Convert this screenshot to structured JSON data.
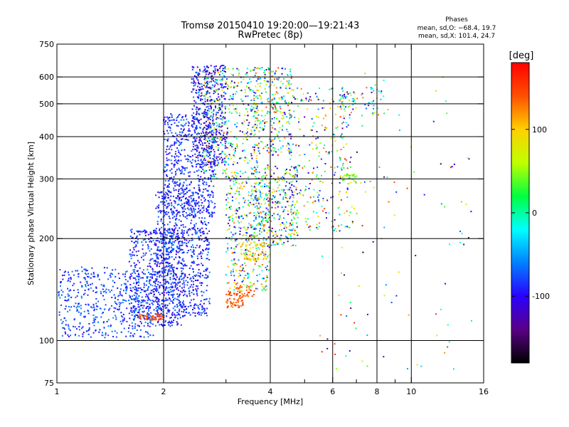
{
  "chart_data": {
    "type": "scatter",
    "title": "Tromsø 20150410 19:20:00—19:21:43",
    "subtitle": "RwPretec (8p)",
    "stats": {
      "heading": "Phases",
      "line_o": "mean, sd,O: −68.4, 19.7",
      "line_x": "mean, sd,X: 101.4, 24.7"
    },
    "xlabel": "Frequency [MHz]",
    "ylabel": "Stationary phase Virtual Height [km]",
    "x_scale": "log",
    "y_scale": "log",
    "xlim": [
      1,
      16
    ],
    "ylim": [
      75,
      750
    ],
    "grid": true,
    "x_ticks": [
      1,
      2,
      4,
      6,
      8,
      10,
      16
    ],
    "x_ticks_with_gridlines": [
      2,
      4,
      6,
      8,
      10
    ],
    "x_ticks_label_only": [
      1,
      16
    ],
    "x_minor_ticks": [
      3,
      5,
      7,
      9
    ],
    "y_ticks": [
      75,
      100,
      200,
      300,
      400,
      500,
      600,
      750
    ],
    "y_ticks_with_gridlines": [
      100,
      200,
      300,
      400,
      500,
      600
    ],
    "colorbar": {
      "label": "[deg]",
      "min": -180,
      "max": 180,
      "ticks": [
        100,
        0,
        -100
      ],
      "colormap": "rainbow",
      "stops": [
        "#000000",
        "#5a0085",
        "#2a00ff",
        "#0080ff",
        "#00ffff",
        "#00ff40",
        "#c0ff00",
        "#ffd000",
        "#ff5000",
        "#ff0000"
      ]
    },
    "clusters": [
      {
        "f": [
          1.0,
          1.9
        ],
        "h": [
          102,
          165
        ],
        "phase": [
          -100,
          -55
        ],
        "n": 520
      },
      {
        "f": [
          1.6,
          2.3
        ],
        "h": [
          110,
          215
        ],
        "phase": [
          -115,
          -60
        ],
        "n": 560
      },
      {
        "f": [
          1.9,
          2.7
        ],
        "h": [
          118,
          280
        ],
        "phase": [
          -115,
          -60
        ],
        "n": 700
      },
      {
        "f": [
          2.0,
          2.8
        ],
        "h": [
          230,
          470
        ],
        "phase": [
          -110,
          -60
        ],
        "n": 560
      },
      {
        "f": [
          2.4,
          3.0
        ],
        "h": [
          330,
          650
        ],
        "phase": [
          -135,
          -60
        ],
        "n": 420
      },
      {
        "f": [
          2.6,
          3.7
        ],
        "h": [
          300,
          640
        ],
        "phase": [
          -160,
          120
        ],
        "n": 420
      },
      {
        "f": [
          3.0,
          4.0
        ],
        "h": [
          140,
          300
        ],
        "phase": [
          -140,
          140
        ],
        "n": 360
      },
      {
        "f": [
          3.6,
          4.8
        ],
        "h": [
          190,
          330
        ],
        "phase": [
          -140,
          140
        ],
        "n": 320
      },
      {
        "f": [
          3.6,
          4.6
        ],
        "h": [
          350,
          640
        ],
        "phase": [
          -120,
          160
        ],
        "n": 280
      },
      {
        "f": [
          4.5,
          6.8
        ],
        "h": [
          210,
          560
        ],
        "phase": [
          -150,
          160
        ],
        "n": 280
      },
      {
        "f": [
          1.7,
          2.0
        ],
        "h": [
          115,
          120
        ],
        "phase": [
          135,
          155
        ],
        "n": 55
      },
      {
        "f": [
          3.0,
          3.35
        ],
        "h": [
          125,
          140
        ],
        "phase": [
          120,
          160
        ],
        "n": 65
      },
      {
        "f": [
          3.2,
          3.6
        ],
        "h": [
          135,
          148
        ],
        "phase": [
          115,
          155
        ],
        "n": 35
      },
      {
        "f": [
          3.3,
          3.9
        ],
        "h": [
          172,
          195
        ],
        "phase": [
          80,
          120
        ],
        "n": 70
      },
      {
        "f": [
          6.4,
          7.0
        ],
        "h": [
          290,
          310
        ],
        "phase": [
          20,
          70
        ],
        "n": 35
      },
      {
        "f": [
          6.3,
          7.0
        ],
        "h": [
          480,
          545
        ],
        "phase": [
          -130,
          110
        ],
        "n": 40
      },
      {
        "f": [
          7.2,
          8.5
        ],
        "h": [
          460,
          560
        ],
        "phase": [
          -130,
          140
        ],
        "n": 30
      },
      {
        "f": [
          5.5,
          15.0
        ],
        "h": [
          78,
          640
        ],
        "phase": [
          -170,
          170
        ],
        "n": 110
      }
    ]
  }
}
